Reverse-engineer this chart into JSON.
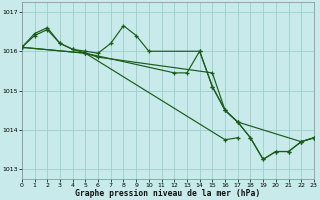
{
  "title": "Graphe pression niveau de la mer (hPa)",
  "bg_color": "#c8eaea",
  "grid_color": "#9ecece",
  "line_color": "#1a5c1a",
  "xlim": [
    0,
    23
  ],
  "ylim": [
    1012.75,
    1017.25
  ],
  "yticks": [
    1013,
    1014,
    1015,
    1016,
    1017
  ],
  "xticks": [
    0,
    1,
    2,
    3,
    4,
    5,
    6,
    7,
    8,
    9,
    10,
    11,
    12,
    13,
    14,
    15,
    16,
    17,
    18,
    19,
    20,
    21,
    22,
    23
  ],
  "series": [
    {
      "comment": "Line A: 0->1->2->3->4->5->6 then jumps to 15->16->17->22->23",
      "x": [
        0,
        1,
        2,
        3,
        4,
        5,
        6,
        15,
        16,
        17,
        22,
        23
      ],
      "y": [
        1016.1,
        1016.4,
        1016.55,
        1016.2,
        1016.05,
        1015.95,
        1015.85,
        1015.45,
        1014.5,
        1014.2,
        1013.7,
        1013.8
      ]
    },
    {
      "comment": "Line B: 0->1->2->3->4->5->6->7->8->9->10->14->15->16->17->18->19->20->21->22->23",
      "x": [
        0,
        1,
        2,
        3,
        4,
        5,
        6,
        7,
        8,
        9,
        10,
        14,
        15,
        16,
        17,
        18,
        19,
        20,
        21,
        22,
        23
      ],
      "y": [
        1016.1,
        1016.45,
        1016.6,
        1016.2,
        1016.05,
        1016.0,
        1015.95,
        1016.2,
        1016.65,
        1016.4,
        1016.0,
        1016.0,
        1015.1,
        1014.5,
        1014.2,
        1013.8,
        1013.25,
        1013.45,
        1013.45,
        1013.7,
        1013.8
      ]
    },
    {
      "comment": "Line C: 0->5 then 12->13->14->15->16->17->18->19->20->21->22->23",
      "x": [
        0,
        5,
        12,
        13,
        14,
        15,
        16,
        17,
        18,
        19,
        20,
        21,
        22,
        23
      ],
      "y": [
        1016.1,
        1015.95,
        1015.45,
        1015.45,
        1016.0,
        1015.1,
        1014.5,
        1014.2,
        1013.8,
        1013.25,
        1013.45,
        1013.45,
        1013.7,
        1013.8
      ]
    },
    {
      "x": [
        0,
        5,
        16,
        17
      ],
      "y": [
        1016.1,
        1015.95,
        1013.75,
        1013.8
      ]
    }
  ]
}
